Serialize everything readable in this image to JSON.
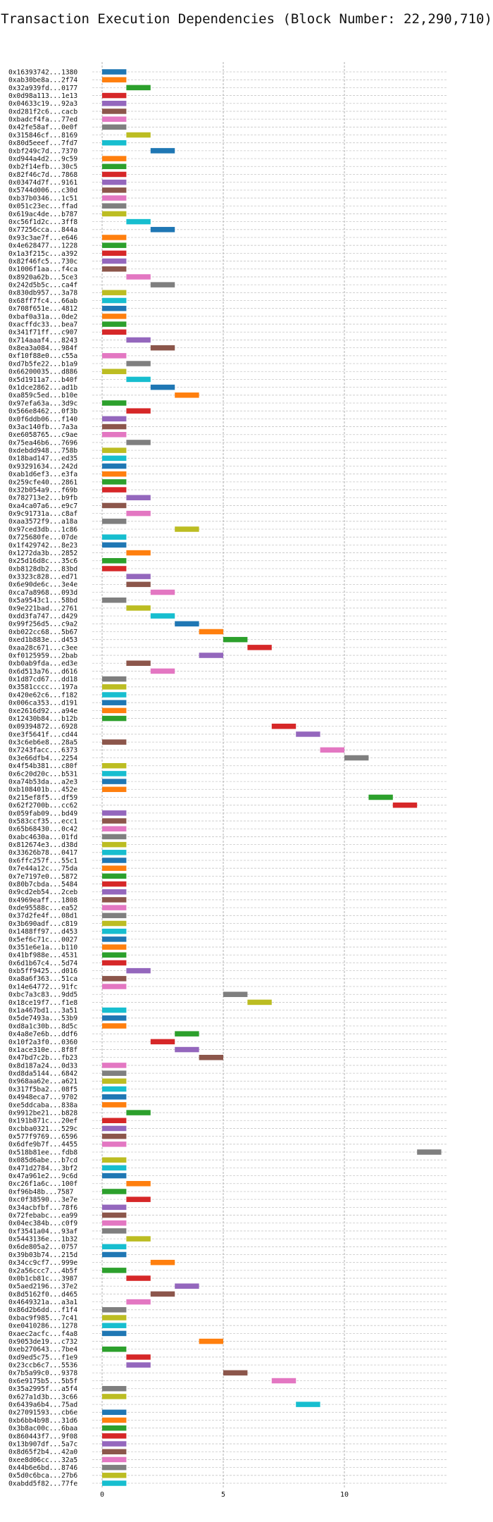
{
  "chart_data": {
    "type": "bar",
    "orientation": "horizontal",
    "title": "Transaction Execution Dependencies (Block Number: 22,290,710)",
    "xlabel": "",
    "ylabel": "",
    "xlim": [
      -0.5,
      14.2
    ],
    "xticks": [
      0,
      5,
      10
    ],
    "grid": true,
    "colors": [
      "#1f77b4",
      "#ff7f0e",
      "#2ca02c",
      "#d62728",
      "#9467bd",
      "#8c564b",
      "#e377c2",
      "#7f7f7f",
      "#bcbd22",
      "#17becf"
    ],
    "bars": [
      {
        "label": "0x16393742...1380",
        "start": 0
      },
      {
        "label": "0xab30be8a...2f74",
        "start": 0
      },
      {
        "label": "0x32a939fd...0177",
        "start": 1
      },
      {
        "label": "0x0d98a113...1e13",
        "start": 0
      },
      {
        "label": "0x04633c19...92a3",
        "start": 0
      },
      {
        "label": "0xd281f2c6...cacb",
        "start": 0
      },
      {
        "label": "0xbadcf4fa...77ed",
        "start": 0
      },
      {
        "label": "0x42fe58af...0e0f",
        "start": 0
      },
      {
        "label": "0x315846cf...8169",
        "start": 1
      },
      {
        "label": "0x80d5eeef...7fd7",
        "start": 0
      },
      {
        "label": "0xbf249c7d...7370",
        "start": 2
      },
      {
        "label": "0xd944a4d2...9c59",
        "start": 0
      },
      {
        "label": "0xb2f14efb...30c5",
        "start": 0
      },
      {
        "label": "0x82f46c7d...7868",
        "start": 0
      },
      {
        "label": "0x03474d7f...9161",
        "start": 0
      },
      {
        "label": "0x5744d006...c30d",
        "start": 0
      },
      {
        "label": "0xb37b0346...1c51",
        "start": 0
      },
      {
        "label": "0x051c23ec...ffad",
        "start": 0
      },
      {
        "label": "0x619ac4de...b787",
        "start": 0
      },
      {
        "label": "0xc56f1d2c...3ff8",
        "start": 1
      },
      {
        "label": "0x77256cca...844a",
        "start": 2
      },
      {
        "label": "0x93c3ae7f...e646",
        "start": 0
      },
      {
        "label": "0x4e628477...1228",
        "start": 0
      },
      {
        "label": "0x1a3f215c...a392",
        "start": 0
      },
      {
        "label": "0x82f46fc5...730c",
        "start": 0
      },
      {
        "label": "0x1006f1aa...f4ca",
        "start": 0
      },
      {
        "label": "0x8920a62b...5ce3",
        "start": 1
      },
      {
        "label": "0x242d5b5c...ca4f",
        "start": 2
      },
      {
        "label": "0x830db957...3a78",
        "start": 0
      },
      {
        "label": "0x68ff7fc4...66ab",
        "start": 0
      },
      {
        "label": "0x708f651e...4812",
        "start": 0
      },
      {
        "label": "0xbaf0a31a...0de2",
        "start": 0
      },
      {
        "label": "0xacffdc33...bea7",
        "start": 0
      },
      {
        "label": "0x341f71ff...c907",
        "start": 0
      },
      {
        "label": "0x714aaaf4...8243",
        "start": 1
      },
      {
        "label": "0x8ea3a084...984f",
        "start": 2
      },
      {
        "label": "0xf10f88e0...c55a",
        "start": 0
      },
      {
        "label": "0xd7b5fe22...b1a9",
        "start": 1
      },
      {
        "label": "0x66200035...d886",
        "start": 0
      },
      {
        "label": "0x5d1911a7...b40f",
        "start": 1
      },
      {
        "label": "0x1dce2862...ad1b",
        "start": 2
      },
      {
        "label": "0xa859c5ed...b10e",
        "start": 3
      },
      {
        "label": "0x97efa63a...3d9c",
        "start": 0
      },
      {
        "label": "0x566e8462...0f3b",
        "start": 1
      },
      {
        "label": "0x0f6ddb06...f140",
        "start": 0
      },
      {
        "label": "0x3ac140fb...7a3a",
        "start": 0
      },
      {
        "label": "0xe6058765...c9ae",
        "start": 0
      },
      {
        "label": "0x75ea46b6...7696",
        "start": 1
      },
      {
        "label": "0xdebdd948...758b",
        "start": 0
      },
      {
        "label": "0x18bad147...ed35",
        "start": 0
      },
      {
        "label": "0x93291634...242d",
        "start": 0
      },
      {
        "label": "0xab1d6ef3...e3fa",
        "start": 0
      },
      {
        "label": "0x259cfe40...2861",
        "start": 0
      },
      {
        "label": "0x32b054a9...f69b",
        "start": 0
      },
      {
        "label": "0x782713e2...b9fb",
        "start": 1
      },
      {
        "label": "0xa4ca07a6...e9c7",
        "start": 0
      },
      {
        "label": "0x9c91731a...c8af",
        "start": 1
      },
      {
        "label": "0xaa3572f9...a18a",
        "start": 0
      },
      {
        "label": "0x97ced3db...1c86",
        "start": 3
      },
      {
        "label": "0x725680fe...07de",
        "start": 0
      },
      {
        "label": "0x1f429742...8e23",
        "start": 0
      },
      {
        "label": "0x1272da3b...2852",
        "start": 1
      },
      {
        "label": "0x25d16d8c...35c6",
        "start": 0
      },
      {
        "label": "0xb8128db2...83bd",
        "start": 0
      },
      {
        "label": "0x3323c828...ed71",
        "start": 1
      },
      {
        "label": "0x6e90de6c...3e4e",
        "start": 1
      },
      {
        "label": "0xca7a8968...093d",
        "start": 2
      },
      {
        "label": "0x5a9543c1...58bd",
        "start": 0
      },
      {
        "label": "0x9e221bad...2761",
        "start": 1
      },
      {
        "label": "0xdd3fa747...d429",
        "start": 2
      },
      {
        "label": "0x99f256d5...c9a2",
        "start": 3
      },
      {
        "label": "0xb022cc68...5b67",
        "start": 4
      },
      {
        "label": "0xed1b883e...d453",
        "start": 5
      },
      {
        "label": "0xaa28c671...c3ee",
        "start": 6
      },
      {
        "label": "0xf0125959...2bab",
        "start": 4
      },
      {
        "label": "0xb0ab9fda...ed3e",
        "start": 1
      },
      {
        "label": "0x6d513a76...d616",
        "start": 2
      },
      {
        "label": "0x1d87cd67...dd18",
        "start": 0
      },
      {
        "label": "0x3581cccc...197a",
        "start": 0
      },
      {
        "label": "0x420e62c6...f182",
        "start": 0
      },
      {
        "label": "0x006ca353...d191",
        "start": 0
      },
      {
        "label": "0xe2616d92...a94e",
        "start": 0
      },
      {
        "label": "0x12430b84...b12b",
        "start": 0
      },
      {
        "label": "0x09394872...6928",
        "start": 7
      },
      {
        "label": "0xe3f5641f...cd44",
        "start": 8
      },
      {
        "label": "0x3c6eb6e8...28a5",
        "start": 0
      },
      {
        "label": "0x7243facc...6373",
        "start": 9
      },
      {
        "label": "0x3e66dfb4...2254",
        "start": 10
      },
      {
        "label": "0x4f54b381...c80f",
        "start": 0
      },
      {
        "label": "0x6c20d20c...b531",
        "start": 0
      },
      {
        "label": "0xa74b53da...a2e3",
        "start": 0
      },
      {
        "label": "0xb108401b...452e",
        "start": 0
      },
      {
        "label": "0x215ef8f5...df59",
        "start": 11
      },
      {
        "label": "0x62f2700b...cc62",
        "start": 12
      },
      {
        "label": "0x059fab09...bd49",
        "start": 0
      },
      {
        "label": "0x583ccf35...ecc1",
        "start": 0
      },
      {
        "label": "0x65b68430...0c42",
        "start": 0
      },
      {
        "label": "0xabc4630a...01fd",
        "start": 0
      },
      {
        "label": "0x812674e3...d38d",
        "start": 0
      },
      {
        "label": "0x33626b78...0417",
        "start": 0
      },
      {
        "label": "0x6ffc257f...55c1",
        "start": 0
      },
      {
        "label": "0x7e44a12c...75da",
        "start": 0
      },
      {
        "label": "0x7e7197e0...5872",
        "start": 0
      },
      {
        "label": "0x80b7cbda...5484",
        "start": 0
      },
      {
        "label": "0x9cd2eb54...2ceb",
        "start": 0
      },
      {
        "label": "0x4969eaff...1808",
        "start": 0
      },
      {
        "label": "0xde95588c...ea52",
        "start": 0
      },
      {
        "label": "0x37d2fe4f...08d1",
        "start": 0
      },
      {
        "label": "0x3b690adf...c819",
        "start": 0
      },
      {
        "label": "0x1488ff97...d453",
        "start": 0
      },
      {
        "label": "0x5ef6c71c...0027",
        "start": 0
      },
      {
        "label": "0x351e6e1a...b110",
        "start": 0
      },
      {
        "label": "0x41bf988e...4531",
        "start": 0
      },
      {
        "label": "0x6d1b67c4...5d74",
        "start": 0
      },
      {
        "label": "0xb5ff9425...d016",
        "start": 1
      },
      {
        "label": "0xa8a6f363...51ca",
        "start": 0
      },
      {
        "label": "0x14e64772...91fc",
        "start": 0
      },
      {
        "label": "0xbc7a3c83...9dd5",
        "start": 5
      },
      {
        "label": "0x18ce19f7...f1e8",
        "start": 6
      },
      {
        "label": "0x1a467bd1...3a51",
        "start": 0
      },
      {
        "label": "0x5de7493a...53b9",
        "start": 0
      },
      {
        "label": "0xd8a1c30b...8d5c",
        "start": 0
      },
      {
        "label": "0x4a8e7e6b...ddf6",
        "start": 3
      },
      {
        "label": "0x10f2a3f0...0360",
        "start": 2
      },
      {
        "label": "0x1ace310e...8f8f",
        "start": 3
      },
      {
        "label": "0x47bd7c2b...fb23",
        "start": 4
      },
      {
        "label": "0x8d187a24...0d33",
        "start": 0
      },
      {
        "label": "0xd8da5144...6842",
        "start": 0
      },
      {
        "label": "0x968aa62e...a621",
        "start": 0
      },
      {
        "label": "0x317f5ba2...08f5",
        "start": 0
      },
      {
        "label": "0x4948eca7...9702",
        "start": 0
      },
      {
        "label": "0xe5ddcaba...838a",
        "start": 0
      },
      {
        "label": "0x9912be21...b828",
        "start": 1
      },
      {
        "label": "0x191b871c...20ef",
        "start": 0
      },
      {
        "label": "0xcbba0321...529c",
        "start": 0
      },
      {
        "label": "0x577f9769...6596",
        "start": 0
      },
      {
        "label": "0x6dfe9b7f...4455",
        "start": 0
      },
      {
        "label": "0x518b81ee...fdb8",
        "start": 13
      },
      {
        "label": "0x085d6abe...b7cd",
        "start": 0
      },
      {
        "label": "0x471d2784...3bf2",
        "start": 0
      },
      {
        "label": "0x47a961e2...9c6d",
        "start": 0
      },
      {
        "label": "0xc26f1a6c...100f",
        "start": 1
      },
      {
        "label": "0xf96b48b...7587",
        "start": 0
      },
      {
        "label": "0xc0f38590...3e7e",
        "start": 1
      },
      {
        "label": "0x34acbfbf...78f6",
        "start": 0
      },
      {
        "label": "0x72febabc...ea99",
        "start": 0
      },
      {
        "label": "0x04ec384b...c0f9",
        "start": 0
      },
      {
        "label": "0xf3541a04...93af",
        "start": 0
      },
      {
        "label": "0x5443136e...1b32",
        "start": 1
      },
      {
        "label": "0x6de805a2...0757",
        "start": 0
      },
      {
        "label": "0x39b03b74...215d",
        "start": 0
      },
      {
        "label": "0x34cc9cf7...999e",
        "start": 2
      },
      {
        "label": "0x2a56ccc7...4b5f",
        "start": 0
      },
      {
        "label": "0x0b1cb81c...3987",
        "start": 1
      },
      {
        "label": "0x5aed2196...37e2",
        "start": 3
      },
      {
        "label": "0x8d5162f0...d465",
        "start": 2
      },
      {
        "label": "0x4649321a...a3a1",
        "start": 1
      },
      {
        "label": "0x86d2b6dd...f1f4",
        "start": 0
      },
      {
        "label": "0xbac9f985...7c41",
        "start": 0
      },
      {
        "label": "0xe0410286...1278",
        "start": 0
      },
      {
        "label": "0xaec2acfc...f4a8",
        "start": 0
      },
      {
        "label": "0x9053de19...c732",
        "start": 4
      },
      {
        "label": "0xeb270643...7be4",
        "start": 0
      },
      {
        "label": "0xd9ed5c75...f1e9",
        "start": 1
      },
      {
        "label": "0x23ccb6c7...5536",
        "start": 1
      },
      {
        "label": "0x7b5a99c0...9378",
        "start": 5
      },
      {
        "label": "0x6e9175b5...5b5f",
        "start": 7
      },
      {
        "label": "0x35a2995f...a5f4",
        "start": 0
      },
      {
        "label": "0x627a1d3b...3c66",
        "start": 0
      },
      {
        "label": "0x6439a6b4...75ad",
        "start": 8
      },
      {
        "label": "0x27091593...cb6e",
        "start": 0
      },
      {
        "label": "0xb6bb4b98...31d6",
        "start": 0
      },
      {
        "label": "0x3b8ac00c...6baa",
        "start": 0
      },
      {
        "label": "0x860443f7...9f08",
        "start": 0
      },
      {
        "label": "0x13b907df...5a7c",
        "start": 0
      },
      {
        "label": "0x8d65f2b4...42a0",
        "start": 0
      },
      {
        "label": "0xee8d06cc...32a5",
        "start": 0
      },
      {
        "label": "0x44b6e6bd...8746",
        "start": 0
      },
      {
        "label": "0x5d0c6bca...27b6",
        "start": 0
      },
      {
        "label": "0xabdd5f82...77fe",
        "start": 0
      }
    ]
  }
}
